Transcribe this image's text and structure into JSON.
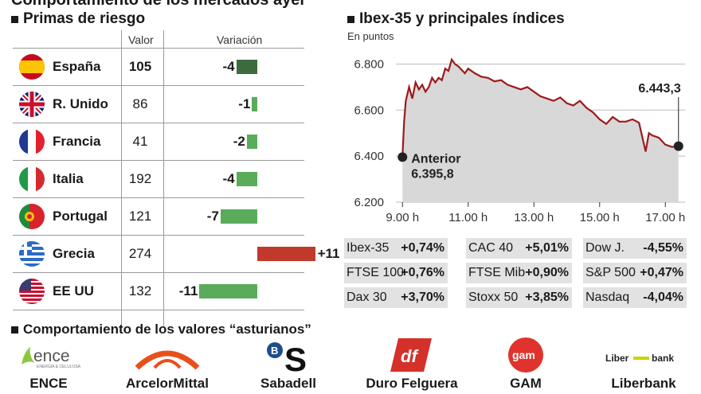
{
  "header": {
    "top_title": "Comportamiento de los mercados ayer",
    "risk_title": "Primas de riesgo",
    "risk_col_value": "Valor",
    "risk_col_change": "Variación",
    "ibex_title": "Ibex-35 y principales índices",
    "companies_title": "Comportamiento de los valores “asturianos”"
  },
  "risk_premiums": [
    {
      "country": "España",
      "value": "105",
      "change": -4,
      "change_label": "-4",
      "bar_color": "#3e6b3e",
      "flag": "spain-flag-icon"
    },
    {
      "country": "R. Unido",
      "value": "86",
      "change": -1,
      "change_label": "-1",
      "bar_color": "#5aac5a",
      "flag": "uk-flag-icon"
    },
    {
      "country": "Francia",
      "value": "41",
      "change": -2,
      "change_label": "-2",
      "bar_color": "#5aac5a",
      "flag": "france-flag-icon"
    },
    {
      "country": "Italia",
      "value": "192",
      "change": -4,
      "change_label": "-4",
      "bar_color": "#5aac5a",
      "flag": "italy-flag-icon"
    },
    {
      "country": "Portugal",
      "value": "121",
      "change": -7,
      "change_label": "-7",
      "bar_color": "#5aac5a",
      "flag": "portugal-flag-icon"
    },
    {
      "country": "Grecia",
      "value": "274",
      "change": 11,
      "change_label": "+11",
      "bar_color": "#c0392b",
      "flag": "greece-flag-icon"
    },
    {
      "country": "EE UU",
      "value": "132",
      "change": -11,
      "change_label": "-11",
      "bar_color": "#5aac5a",
      "flag": "usa-flag-icon"
    }
  ],
  "chart_data": {
    "type": "area",
    "title": "Ibex-35 y principales índices",
    "ylabel": "En puntos",
    "ylim": [
      6200,
      6850
    ],
    "yticks": [
      6200,
      6400,
      6600,
      6800
    ],
    "ytick_labels": [
      "6.200",
      "6.400",
      "6.600",
      "6.800"
    ],
    "xlim": [
      8.8,
      17.6
    ],
    "xticks": [
      9,
      11,
      13,
      15,
      17
    ],
    "xtick_labels": [
      "9.00 h",
      "11.00 h",
      "13.00 h",
      "15.00 h",
      "17.00 h"
    ],
    "previous_label": "Anterior",
    "previous_value": 6395.8,
    "previous_value_label": "6.395,8",
    "close_value": 6443.3,
    "close_value_label": "6.443,3",
    "series": [
      {
        "name": "Ibex-35",
        "x": [
          9.0,
          9.05,
          9.1,
          9.2,
          9.3,
          9.4,
          9.5,
          9.6,
          9.7,
          9.8,
          9.9,
          10.0,
          10.1,
          10.2,
          10.3,
          10.4,
          10.5,
          10.6,
          10.7,
          10.8,
          10.9,
          11.0,
          11.2,
          11.4,
          11.6,
          11.8,
          12.0,
          12.2,
          12.4,
          12.6,
          12.8,
          13.0,
          13.2,
          13.4,
          13.6,
          13.8,
          14.0,
          14.2,
          14.4,
          14.6,
          14.8,
          15.0,
          15.2,
          15.4,
          15.6,
          15.8,
          16.0,
          16.2,
          16.4,
          16.5,
          16.6,
          16.8,
          17.0,
          17.2,
          17.4
        ],
        "values": [
          6395.8,
          6550,
          6640,
          6700,
          6650,
          6720,
          6690,
          6710,
          6680,
          6700,
          6740,
          6720,
          6740,
          6730,
          6780,
          6770,
          6820,
          6800,
          6790,
          6775,
          6760,
          6780,
          6760,
          6745,
          6740,
          6725,
          6730,
          6710,
          6700,
          6690,
          6700,
          6680,
          6660,
          6650,
          6640,
          6655,
          6630,
          6620,
          6640,
          6610,
          6590,
          6560,
          6540,
          6570,
          6550,
          6550,
          6560,
          6545,
          6420,
          6500,
          6490,
          6480,
          6450,
          6440,
          6443.3
        ]
      }
    ]
  },
  "indices": [
    {
      "name": "Ibex-35",
      "change": "+0,74%"
    },
    {
      "name": "CAC 40",
      "change": "+5,01%"
    },
    {
      "name": "Dow J.",
      "change": "-4,55%"
    },
    {
      "name": "FTSE 100",
      "change": "+0,76%"
    },
    {
      "name": "FTSE Mib",
      "change": "+0,90%"
    },
    {
      "name": "S&P 500",
      "change": "+0,47%"
    },
    {
      "name": "Dax 30",
      "change": "+3,70%"
    },
    {
      "name": "Stoxx 50",
      "change": "+3,85%"
    },
    {
      "name": "Nasdaq",
      "change": "-4,04%"
    }
  ],
  "companies": [
    {
      "name": "ENCE",
      "logo_text": "ence",
      "logo_sub": "ENERGÍA & CELULOSA"
    },
    {
      "name": "ArcelorMittal"
    },
    {
      "name": "Sabadell",
      "logo_text": "B"
    },
    {
      "name": "Duro Felguera",
      "logo_text": "df"
    },
    {
      "name": "GAM",
      "logo_text": "gam"
    },
    {
      "name": "Liberbank",
      "logo_text": "Liber",
      "logo_text2": "bank"
    }
  ],
  "colors": {
    "green_dark": "#3e6b3e",
    "green": "#5aac5a",
    "red": "#c0392b",
    "line": "#9b1b1b",
    "area": "#d8d8d8"
  }
}
